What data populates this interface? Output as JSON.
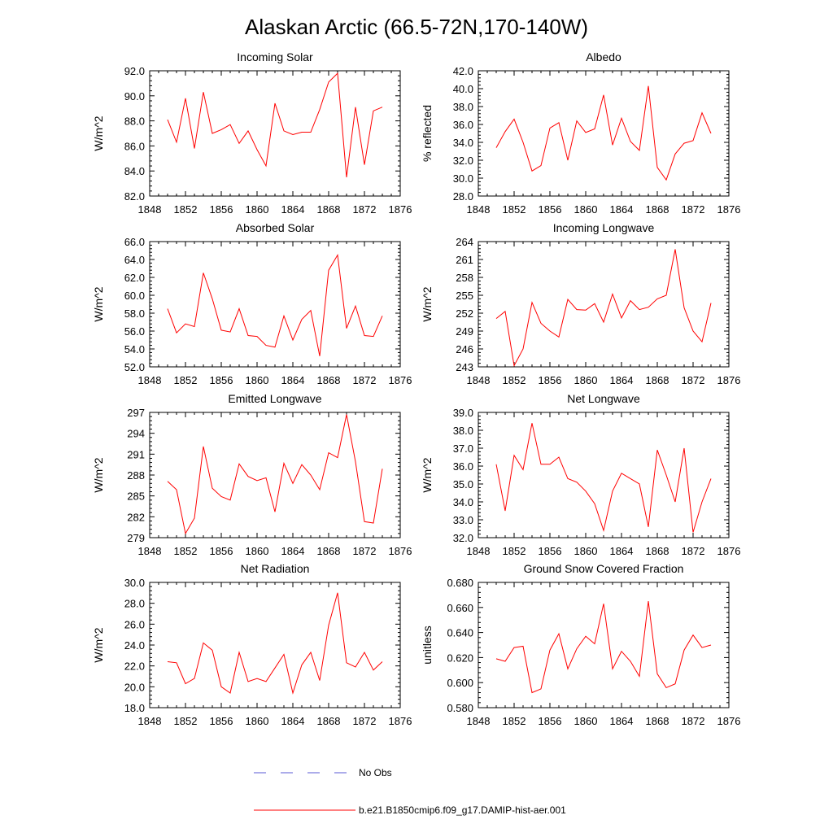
{
  "figure": {
    "title": "Alaskan Arctic (66.5-72N,170-140W)"
  },
  "legend": {
    "entries": [
      {
        "label": "No Obs",
        "color": "#5a5ad6",
        "style": "dashed"
      },
      {
        "label": "b.e21.B1850cmip6.f09_g17.DAMIP-hist-aer.001",
        "color": "#ff0000",
        "style": "solid"
      }
    ]
  },
  "chart_data": [
    {
      "type": "line",
      "title": "Incoming Solar",
      "ylabel": "W/m^2",
      "xlim": [
        1848,
        1876
      ],
      "ylim": [
        82,
        92
      ],
      "xticks": [
        1848,
        1852,
        1856,
        1860,
        1864,
        1868,
        1872,
        1876
      ],
      "yticks": [
        "82.0",
        "84.0",
        "86.0",
        "88.0",
        "90.0",
        "92.0"
      ],
      "series": [
        {
          "color": "#ff0000",
          "x": [
            1850,
            1851,
            1852,
            1853,
            1854,
            1855,
            1856,
            1857,
            1858,
            1859,
            1860,
            1861,
            1862,
            1863,
            1864,
            1865,
            1866,
            1867,
            1868,
            1869,
            1870,
            1871,
            1872,
            1873,
            1874
          ],
          "values": [
            88.1,
            86.3,
            89.8,
            85.8,
            90.3,
            87.0,
            87.3,
            87.7,
            86.2,
            87.2,
            85.7,
            84.4,
            89.4,
            87.2,
            86.9,
            87.1,
            87.1,
            88.9,
            91.1,
            91.8,
            83.5,
            89.1,
            84.5,
            88.8,
            89.1
          ]
        }
      ]
    },
    {
      "type": "line",
      "title": "Albedo",
      "ylabel": "% reflected",
      "xlim": [
        1848,
        1876
      ],
      "ylim": [
        28,
        42
      ],
      "xticks": [
        1848,
        1852,
        1856,
        1860,
        1864,
        1868,
        1872,
        1876
      ],
      "yticks": [
        "28.0",
        "30.0",
        "32.0",
        "34.0",
        "36.0",
        "38.0",
        "40.0",
        "42.0"
      ],
      "series": [
        {
          "color": "#ff0000",
          "x": [
            1850,
            1851,
            1852,
            1853,
            1854,
            1855,
            1856,
            1857,
            1858,
            1859,
            1860,
            1861,
            1862,
            1863,
            1864,
            1865,
            1866,
            1867,
            1868,
            1869,
            1870,
            1871,
            1872,
            1873,
            1874
          ],
          "values": [
            33.4,
            35.2,
            36.6,
            34.0,
            30.8,
            31.4,
            35.6,
            36.2,
            32.0,
            36.4,
            35.1,
            35.5,
            39.3,
            33.7,
            36.7,
            34.1,
            33.1,
            40.3,
            31.2,
            29.8,
            32.7,
            33.9,
            34.2,
            37.3,
            35.0
          ]
        }
      ]
    },
    {
      "type": "line",
      "title": "Absorbed Solar",
      "ylabel": "W/m^2",
      "xlim": [
        1848,
        1876
      ],
      "ylim": [
        52,
        66
      ],
      "xticks": [
        1848,
        1852,
        1856,
        1860,
        1864,
        1868,
        1872,
        1876
      ],
      "yticks": [
        "52.0",
        "54.0",
        "56.0",
        "58.0",
        "60.0",
        "62.0",
        "64.0",
        "66.0"
      ],
      "series": [
        {
          "color": "#ff0000",
          "x": [
            1850,
            1851,
            1852,
            1853,
            1854,
            1855,
            1856,
            1857,
            1858,
            1859,
            1860,
            1861,
            1862,
            1863,
            1864,
            1865,
            1866,
            1867,
            1868,
            1869,
            1870,
            1871,
            1872,
            1873,
            1874
          ],
          "values": [
            58.5,
            55.8,
            56.8,
            56.5,
            62.5,
            59.6,
            56.1,
            55.9,
            58.5,
            55.5,
            55.4,
            54.4,
            54.2,
            57.7,
            55.0,
            57.3,
            58.3,
            53.2,
            62.8,
            64.5,
            56.3,
            58.8,
            55.5,
            55.4,
            57.7
          ]
        }
      ]
    },
    {
      "type": "line",
      "title": "Incoming Longwave",
      "ylabel": "W/m^2",
      "xlim": [
        1848,
        1876
      ],
      "ylim": [
        243,
        264
      ],
      "xticks": [
        1848,
        1852,
        1856,
        1860,
        1864,
        1868,
        1872,
        1876
      ],
      "yticks": [
        "243",
        "246",
        "249",
        "252",
        "255",
        "258",
        "261",
        "264"
      ],
      "series": [
        {
          "color": "#ff0000",
          "x": [
            1850,
            1851,
            1852,
            1853,
            1854,
            1855,
            1856,
            1857,
            1858,
            1859,
            1860,
            1861,
            1862,
            1863,
            1864,
            1865,
            1866,
            1867,
            1868,
            1869,
            1870,
            1871,
            1872,
            1873,
            1874
          ],
          "values": [
            251.1,
            252.3,
            243.2,
            246.0,
            253.8,
            250.3,
            249.0,
            248.0,
            254.3,
            252.6,
            252.5,
            253.6,
            250.5,
            255.2,
            251.2,
            254.1,
            252.6,
            253.0,
            254.4,
            255.0,
            262.7,
            252.9,
            249.0,
            247.2,
            253.7
          ]
        }
      ]
    },
    {
      "type": "line",
      "title": "Emitted Longwave",
      "ylabel": "W/m^2",
      "xlim": [
        1848,
        1876
      ],
      "ylim": [
        279,
        297
      ],
      "xticks": [
        1848,
        1852,
        1856,
        1860,
        1864,
        1868,
        1872,
        1876
      ],
      "yticks": [
        "279",
        "282",
        "285",
        "288",
        "291",
        "294",
        "297"
      ],
      "series": [
        {
          "color": "#ff0000",
          "x": [
            1850,
            1851,
            1852,
            1853,
            1854,
            1855,
            1856,
            1857,
            1858,
            1859,
            1860,
            1861,
            1862,
            1863,
            1864,
            1865,
            1866,
            1867,
            1868,
            1869,
            1870,
            1871,
            1872,
            1873,
            1874
          ],
          "values": [
            287.1,
            285.9,
            279.6,
            281.8,
            292.1,
            286.1,
            284.9,
            284.4,
            289.6,
            287.8,
            287.2,
            287.6,
            282.7,
            289.7,
            286.8,
            289.5,
            288.0,
            285.9,
            291.2,
            290.5,
            296.7,
            289.9,
            281.3,
            281.1,
            288.9
          ]
        }
      ]
    },
    {
      "type": "line",
      "title": "Net Longwave",
      "ylabel": "W/m^2",
      "xlim": [
        1848,
        1876
      ],
      "ylim": [
        32,
        39
      ],
      "xticks": [
        1848,
        1852,
        1856,
        1860,
        1864,
        1868,
        1872,
        1876
      ],
      "yticks": [
        "32.0",
        "33.0",
        "34.0",
        "35.0",
        "36.0",
        "37.0",
        "38.0",
        "39.0"
      ],
      "series": [
        {
          "color": "#ff0000",
          "x": [
            1850,
            1851,
            1852,
            1853,
            1854,
            1855,
            1856,
            1857,
            1858,
            1859,
            1860,
            1861,
            1862,
            1863,
            1864,
            1865,
            1866,
            1867,
            1868,
            1869,
            1870,
            1871,
            1872,
            1873,
            1874
          ],
          "values": [
            36.1,
            33.5,
            36.6,
            35.8,
            38.4,
            36.1,
            36.1,
            36.5,
            35.3,
            35.1,
            34.6,
            33.9,
            32.4,
            34.6,
            35.6,
            35.3,
            35.0,
            32.6,
            36.9,
            35.5,
            34.0,
            37.0,
            32.3,
            34.0,
            35.3
          ]
        }
      ]
    },
    {
      "type": "line",
      "title": "Net Radiation",
      "ylabel": "W/m^2",
      "xlim": [
        1848,
        1876
      ],
      "ylim": [
        18,
        30
      ],
      "xticks": [
        1848,
        1852,
        1856,
        1860,
        1864,
        1868,
        1872,
        1876
      ],
      "yticks": [
        "18.0",
        "20.0",
        "22.0",
        "24.0",
        "26.0",
        "28.0",
        "30.0"
      ],
      "series": [
        {
          "color": "#ff0000",
          "x": [
            1850,
            1851,
            1852,
            1853,
            1854,
            1855,
            1856,
            1857,
            1858,
            1859,
            1860,
            1861,
            1862,
            1863,
            1864,
            1865,
            1866,
            1867,
            1868,
            1869,
            1870,
            1871,
            1872,
            1873,
            1874
          ],
          "values": [
            22.4,
            22.3,
            20.3,
            20.8,
            24.2,
            23.5,
            20.0,
            19.4,
            23.3,
            20.5,
            20.8,
            20.5,
            21.8,
            23.1,
            19.4,
            22.1,
            23.3,
            20.6,
            25.9,
            29.0,
            22.3,
            21.9,
            23.3,
            21.6,
            22.4
          ]
        }
      ]
    },
    {
      "type": "line",
      "title": "Ground Snow Covered Fraction",
      "ylabel": "unitless",
      "xlim": [
        1848,
        1876
      ],
      "ylim": [
        0.58,
        0.68
      ],
      "xticks": [
        1848,
        1852,
        1856,
        1860,
        1864,
        1868,
        1872,
        1876
      ],
      "yticks": [
        "0.580",
        "0.600",
        "0.620",
        "0.640",
        "0.660",
        "0.680"
      ],
      "series": [
        {
          "color": "#ff0000",
          "x": [
            1850,
            1851,
            1852,
            1853,
            1854,
            1855,
            1856,
            1857,
            1858,
            1859,
            1860,
            1861,
            1862,
            1863,
            1864,
            1865,
            1866,
            1867,
            1868,
            1869,
            1870,
            1871,
            1872,
            1873,
            1874
          ],
          "values": [
            0.619,
            0.617,
            0.628,
            0.629,
            0.592,
            0.595,
            0.626,
            0.639,
            0.611,
            0.627,
            0.637,
            0.631,
            0.663,
            0.611,
            0.625,
            0.617,
            0.605,
            0.665,
            0.607,
            0.596,
            0.599,
            0.626,
            0.638,
            0.628,
            0.63
          ]
        }
      ]
    }
  ]
}
